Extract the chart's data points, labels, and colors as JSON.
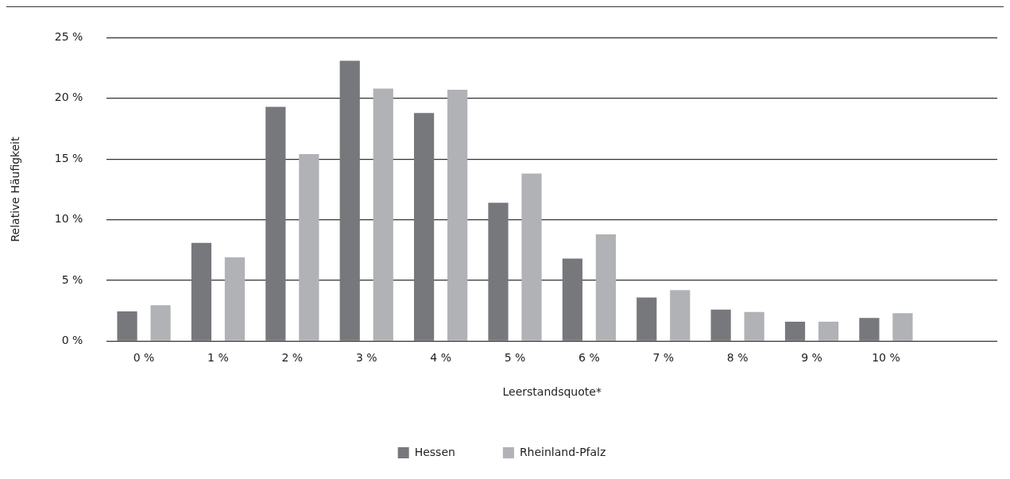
{
  "chart_data": {
    "type": "bar",
    "xlabel": "Leerstandsquote*",
    "ylabel": "Relative Häufigkeit",
    "categories": [
      "0 %",
      "1 %",
      "2 %",
      "3 %",
      "4 %",
      "5 %",
      "6 %",
      "7 %",
      "8 %",
      "9 %",
      "10 %",
      null
    ],
    "series": [
      {
        "name": "Hessen",
        "color": "#77787c",
        "values": [
          2.45,
          8.1,
          19.3,
          23.1,
          18.8,
          11.4,
          6.8,
          3.6,
          2.6,
          1.6,
          1.9,
          null
        ]
      },
      {
        "name": "Rheinland-Pfalz",
        "color": "#b1b2b6",
        "values": [
          2.95,
          6.9,
          15.4,
          20.8,
          20.7,
          13.8,
          8.8,
          4.2,
          2.4,
          1.6,
          2.3,
          null
        ]
      }
    ],
    "ylim": [
      0,
      25
    ],
    "yticks": [
      {
        "value": 0,
        "label": "0 %"
      },
      {
        "value": 5,
        "label": "5 %"
      },
      {
        "value": 10,
        "label": "10 %"
      },
      {
        "value": 15,
        "label": "15 %"
      },
      {
        "value": 20,
        "label": "20 %"
      },
      {
        "value": 25,
        "label": "25 %"
      }
    ],
    "grid": "y",
    "legend": "bottom"
  }
}
